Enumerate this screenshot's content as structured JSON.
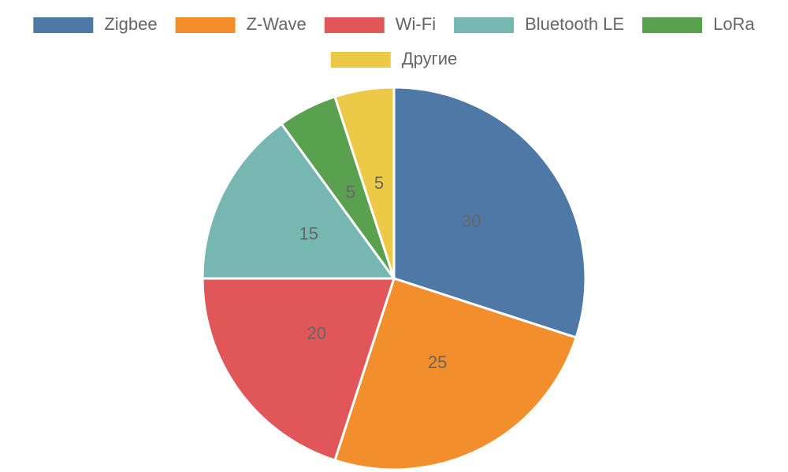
{
  "chart_data": {
    "type": "pie",
    "categories": [
      "Zigbee",
      "Z-Wave",
      "Wi-Fi",
      "Bluetooth LE",
      "LoRa",
      "Другие"
    ],
    "values": [
      30,
      25,
      20,
      15,
      5,
      5
    ],
    "colors": [
      "#4e79a7",
      "#f28e2b",
      "#e15759",
      "#76b7b2",
      "#59a14f",
      "#edc948"
    ],
    "legend": "top"
  }
}
